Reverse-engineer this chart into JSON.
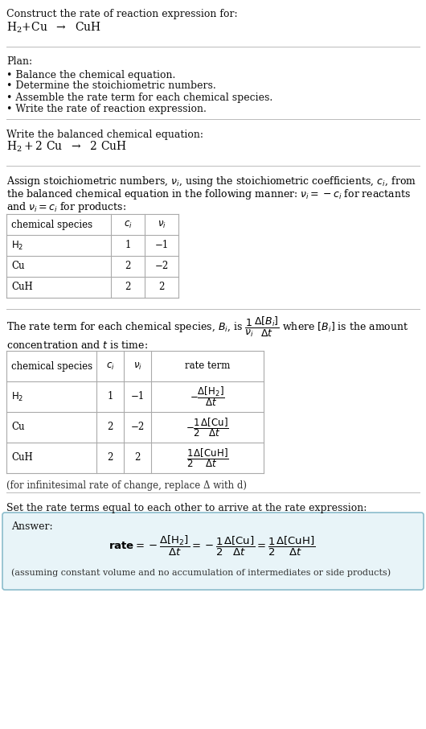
{
  "title_line1": "Construct the rate of reaction expression for:",
  "plan_header": "Plan:",
  "plan_bullets": [
    "• Balance the chemical equation.",
    "• Determine the stoichiometric numbers.",
    "• Assemble the rate term for each chemical species.",
    "• Write the rate of reaction expression."
  ],
  "balanced_header": "Write the balanced chemical equation:",
  "table1_headers": [
    "chemical species",
    "c_i",
    "v_i"
  ],
  "table1_rows": [
    [
      "H_2",
      "1",
      "-1"
    ],
    [
      "Cu",
      "2",
      "-2"
    ],
    [
      "CuH",
      "2",
      "2"
    ]
  ],
  "table2_rows": [
    [
      "H_2",
      "1",
      "-1"
    ],
    [
      "Cu",
      "2",
      "-2"
    ],
    [
      "CuH",
      "2",
      "2"
    ]
  ],
  "infinitesimal_note": "(for infinitesimal rate of change, replace Δ with d)",
  "set_rate_text": "Set the rate terms equal to each other to arrive at the rate expression:",
  "answer_label": "Answer:",
  "answer_bg_color": "#e8f4f8",
  "answer_border_color": "#8bbccc",
  "assuming_note": "(assuming constant volume and no accumulation of intermediates or side products)",
  "bg_color": "#ffffff",
  "separator_color": "#bbbbbb",
  "table_line_color": "#aaaaaa"
}
